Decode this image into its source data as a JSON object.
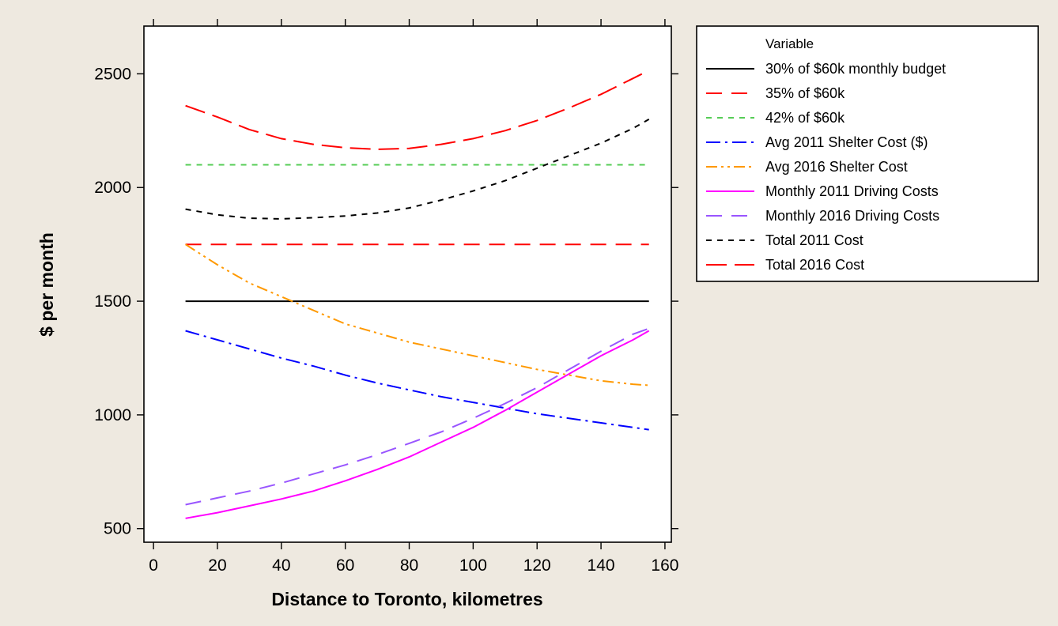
{
  "chart_data": {
    "type": "line",
    "xlabel": "Distance to Toronto, kilometres",
    "ylabel": "$ per month",
    "xlim": [
      -3,
      162
    ],
    "ylim": [
      440,
      2710
    ],
    "xticks": [
      0,
      20,
      40,
      60,
      80,
      100,
      120,
      140,
      160
    ],
    "yticks": [
      500,
      1000,
      1500,
      2000,
      2500
    ],
    "legend_title": "Variable",
    "legend_position": "right",
    "background": "#eee9e0",
    "x": [
      10,
      20,
      30,
      40,
      50,
      60,
      70,
      80,
      90,
      100,
      110,
      120,
      130,
      140,
      150,
      155
    ],
    "series": [
      {
        "name": "30% of $60k monthly budget",
        "color": "#000000",
        "dash": "solid",
        "values": [
          1500,
          1500,
          1500,
          1500,
          1500,
          1500,
          1500,
          1500,
          1500,
          1500,
          1500,
          1500,
          1500,
          1500,
          1500,
          1500
        ]
      },
      {
        "name": "35% of $60k",
        "color": "#ff0000",
        "dash": "long",
        "values": [
          1750,
          1750,
          1750,
          1750,
          1750,
          1750,
          1750,
          1750,
          1750,
          1750,
          1750,
          1750,
          1750,
          1750,
          1750,
          1750
        ]
      },
      {
        "name": "42% of $60k",
        "color": "#55cc55",
        "dash": "short",
        "values": [
          2100,
          2100,
          2100,
          2100,
          2100,
          2100,
          2100,
          2100,
          2100,
          2100,
          2100,
          2100,
          2100,
          2100,
          2100,
          2100
        ]
      },
      {
        "name": "Avg 2011 Shelter Cost ($)",
        "color": "#0000ff",
        "dash": "dashdot",
        "values": [
          1370,
          1330,
          1290,
          1250,
          1215,
          1175,
          1140,
          1110,
          1080,
          1055,
          1030,
          1005,
          985,
          965,
          945,
          935
        ]
      },
      {
        "name": "Avg 2016 Shelter Cost",
        "color": "#ff9900",
        "dash": "dashdotdot",
        "values": [
          1750,
          1660,
          1580,
          1520,
          1460,
          1400,
          1360,
          1320,
          1290,
          1260,
          1230,
          1200,
          1175,
          1150,
          1135,
          1130
        ]
      },
      {
        "name": "Monthly 2011 Driving Costs",
        "color": "#ff00ff",
        "dash": "solid",
        "values": [
          545,
          570,
          600,
          630,
          665,
          710,
          760,
          815,
          880,
          945,
          1020,
          1100,
          1180,
          1260,
          1330,
          1370
        ]
      },
      {
        "name": "Monthly 2016 Driving Costs",
        "color": "#9955ff",
        "dash": "long",
        "values": [
          605,
          635,
          665,
          700,
          740,
          780,
          825,
          875,
          925,
          985,
          1050,
          1120,
          1200,
          1280,
          1355,
          1380
        ]
      },
      {
        "name": "Total 2011 Cost",
        "color": "#000000",
        "dash": "short",
        "values": [
          1905,
          1880,
          1865,
          1862,
          1867,
          1875,
          1888,
          1910,
          1945,
          1985,
          2030,
          2085,
          2140,
          2195,
          2260,
          2300
        ]
      },
      {
        "name": "Total 2016 Cost",
        "color": "#ff0000",
        "dash": "longdash",
        "values": [
          2360,
          2310,
          2255,
          2215,
          2190,
          2175,
          2168,
          2172,
          2190,
          2215,
          2250,
          2295,
          2350,
          2410,
          2480,
          2515
        ]
      }
    ]
  }
}
